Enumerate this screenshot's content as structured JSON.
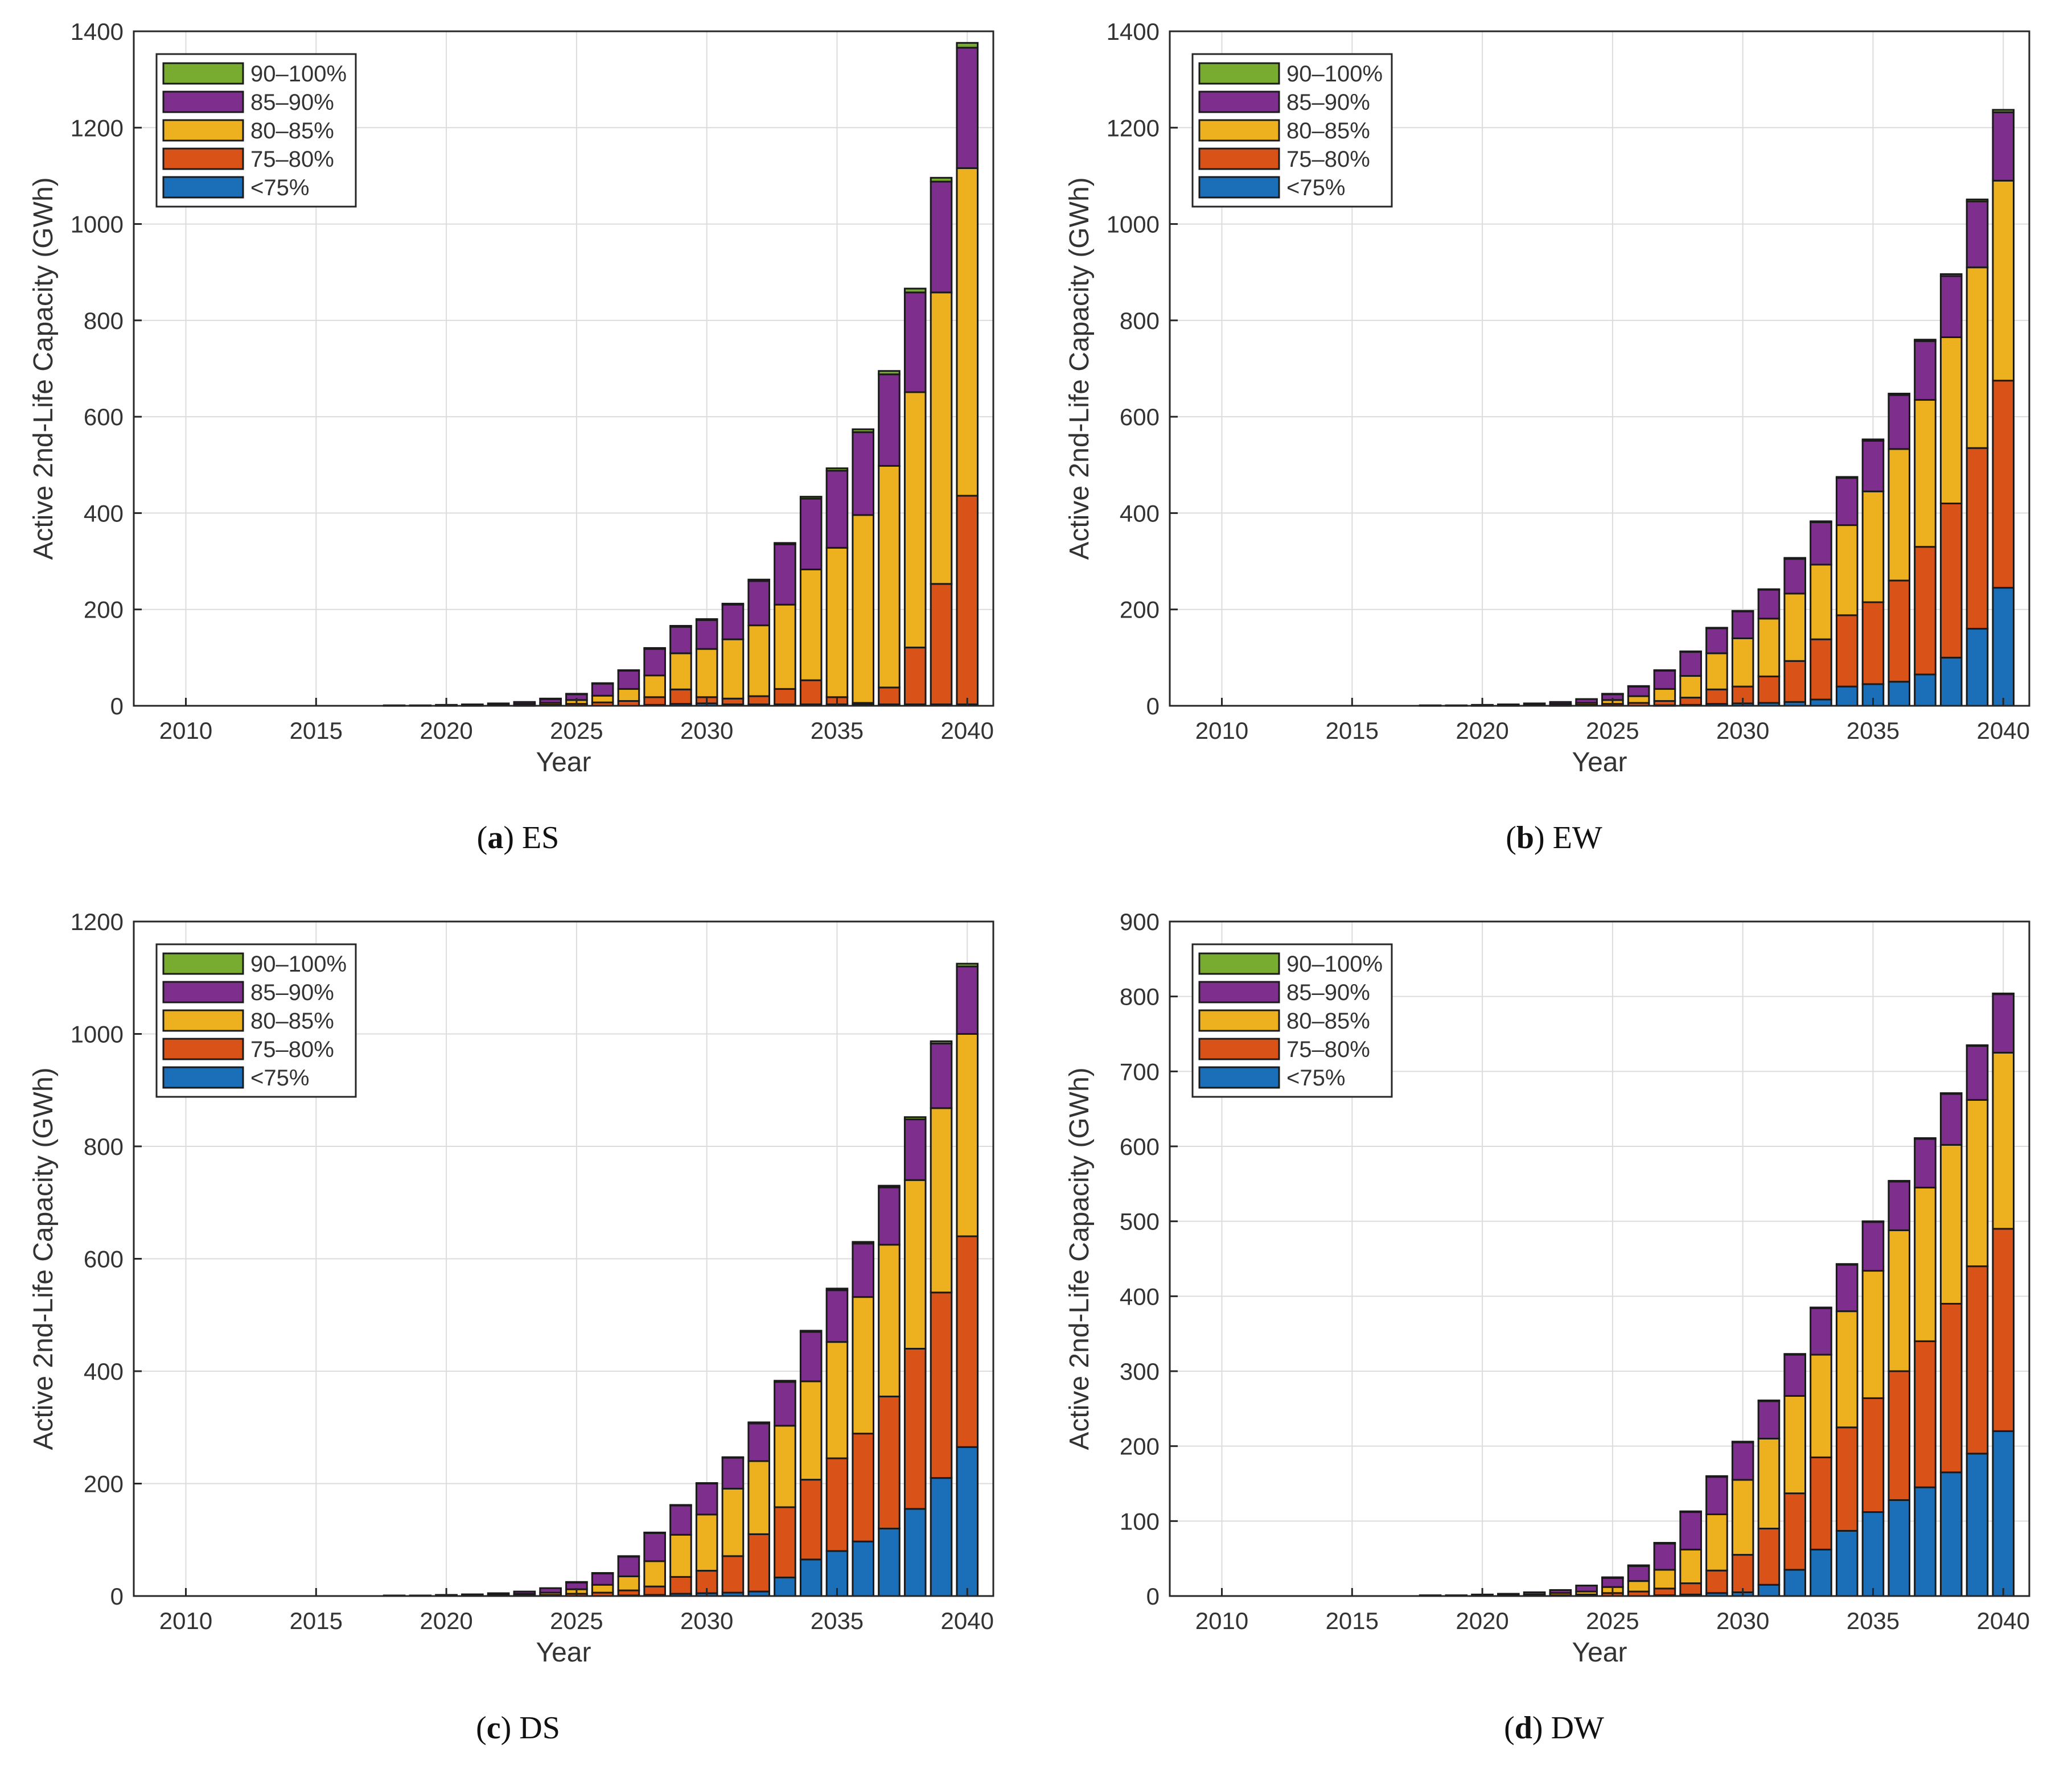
{
  "figure": {
    "series_names": [
      "<75%",
      "75–80%",
      "80–85%",
      "85–90%",
      "90–100%"
    ],
    "series_colors": [
      "#1a6fb8",
      "#d95319",
      "#edb120",
      "#7e2f8e",
      "#77ac30"
    ],
    "legend_order": [
      4,
      3,
      2,
      1,
      0
    ]
  },
  "chart_data": [
    {
      "type": "bar",
      "stacked": true,
      "caption_letter": "a",
      "caption_text": "ES",
      "xlabel": "Year",
      "ylabel": "Active 2nd-Life Capacity (GWh)",
      "xlim": [
        2008,
        2041
      ],
      "xticks": [
        2010,
        2015,
        2020,
        2025,
        2030,
        2035,
        2040
      ],
      "ylim": [
        0,
        1400
      ],
      "yticks": [
        0,
        200,
        400,
        600,
        800,
        1000,
        1200,
        1400
      ],
      "grid": true,
      "legend_position": "top-left",
      "categories": [
        2018,
        2019,
        2020,
        2021,
        2022,
        2023,
        2024,
        2025,
        2026,
        2027,
        2028,
        2029,
        2030,
        2031,
        2032,
        2033,
        2034,
        2035,
        2036,
        2037,
        2038,
        2039,
        2040
      ],
      "series": [
        {
          "name": "<75%",
          "values": [
            0,
            0,
            0,
            0,
            0,
            0,
            0,
            0,
            0,
            0,
            2,
            4,
            5,
            3,
            3,
            3,
            3,
            3,
            3,
            3,
            3,
            3,
            3
          ]
        },
        {
          "name": "75–80%",
          "values": [
            0,
            0,
            0,
            0,
            0,
            1,
            2,
            4,
            7,
            10,
            16,
            30,
            13,
            12,
            17,
            32,
            50,
            15,
            3,
            35,
            118,
            250,
            433
          ]
        },
        {
          "name": "80–85%",
          "values": [
            0,
            0,
            1,
            1,
            2,
            3,
            4,
            8,
            14,
            25,
            45,
            75,
            100,
            123,
            147,
            175,
            230,
            310,
            390,
            460,
            530,
            605,
            680
          ]
        },
        {
          "name": "85–90%",
          "values": [
            1,
            1,
            1,
            2,
            3,
            4,
            8,
            12,
            25,
            38,
            55,
            55,
            60,
            72,
            92,
            125,
            147,
            160,
            172,
            190,
            207,
            230,
            250
          ]
        },
        {
          "name": "90–100%",
          "values": [
            0,
            0,
            0,
            0,
            0,
            0,
            1,
            1,
            1,
            1,
            2,
            2,
            2,
            2,
            3,
            3,
            4,
            5,
            6,
            7,
            8,
            8,
            10
          ]
        }
      ]
    },
    {
      "type": "bar",
      "stacked": true,
      "caption_letter": "b",
      "caption_text": "EW",
      "xlabel": "Year",
      "ylabel": "Active 2nd-Life Capacity (GWh)",
      "xlim": [
        2008,
        2041
      ],
      "xticks": [
        2010,
        2015,
        2020,
        2025,
        2030,
        2035,
        2040
      ],
      "ylim": [
        0,
        1400
      ],
      "yticks": [
        0,
        200,
        400,
        600,
        800,
        1000,
        1200,
        1400
      ],
      "grid": true,
      "legend_position": "top-left",
      "categories": [
        2018,
        2019,
        2020,
        2021,
        2022,
        2023,
        2024,
        2025,
        2026,
        2027,
        2028,
        2029,
        2030,
        2031,
        2032,
        2033,
        2034,
        2035,
        2036,
        2037,
        2038,
        2039,
        2040
      ],
      "series": [
        {
          "name": "<75%",
          "values": [
            0,
            0,
            0,
            0,
            0,
            0,
            0,
            0,
            0,
            1,
            2,
            4,
            5,
            6,
            8,
            13,
            40,
            45,
            50,
            65,
            100,
            160,
            245
          ]
        },
        {
          "name": "75–80%",
          "values": [
            0,
            0,
            0,
            0,
            0,
            1,
            2,
            4,
            6,
            9,
            15,
            30,
            35,
            55,
            85,
            125,
            148,
            170,
            210,
            265,
            320,
            375,
            430
          ]
        },
        {
          "name": "80–85%",
          "values": [
            0,
            0,
            1,
            1,
            2,
            3,
            4,
            8,
            14,
            25,
            45,
            75,
            100,
            120,
            140,
            155,
            187,
            230,
            273,
            305,
            345,
            375,
            415
          ]
        },
        {
          "name": "85–90%",
          "values": [
            1,
            1,
            1,
            2,
            3,
            4,
            8,
            12,
            20,
            38,
            50,
            52,
            56,
            60,
            72,
            88,
            98,
            105,
            112,
            122,
            127,
            137,
            142
          ]
        },
        {
          "name": "90–100%",
          "values": [
            0,
            0,
            0,
            0,
            0,
            0,
            0,
            1,
            1,
            1,
            1,
            1,
            1,
            1,
            2,
            2,
            2,
            3,
            3,
            3,
            4,
            4,
            5
          ]
        }
      ]
    },
    {
      "type": "bar",
      "stacked": true,
      "caption_letter": "c",
      "caption_text": "DS",
      "xlabel": "Year",
      "ylabel": "Active 2nd-Life Capacity (GWh)",
      "xlim": [
        2008,
        2041
      ],
      "xticks": [
        2010,
        2015,
        2020,
        2025,
        2030,
        2035,
        2040
      ],
      "ylim": [
        0,
        1200
      ],
      "yticks": [
        0,
        200,
        400,
        600,
        800,
        1000,
        1200
      ],
      "grid": true,
      "legend_position": "top-left",
      "categories": [
        2018,
        2019,
        2020,
        2021,
        2022,
        2023,
        2024,
        2025,
        2026,
        2027,
        2028,
        2029,
        2030,
        2031,
        2032,
        2033,
        2034,
        2035,
        2036,
        2037,
        2038,
        2039,
        2040
      ],
      "series": [
        {
          "name": "<75%",
          "values": [
            0,
            0,
            0,
            0,
            0,
            0,
            0,
            0,
            0,
            1,
            2,
            4,
            5,
            6,
            8,
            33,
            65,
            80,
            97,
            120,
            155,
            210,
            265
          ]
        },
        {
          "name": "75–80%",
          "values": [
            0,
            0,
            0,
            0,
            0,
            1,
            2,
            4,
            6,
            9,
            15,
            30,
            40,
            65,
            102,
            125,
            142,
            165,
            192,
            235,
            285,
            330,
            375
          ]
        },
        {
          "name": "80–85%",
          "values": [
            0,
            0,
            1,
            1,
            2,
            3,
            4,
            8,
            14,
            25,
            45,
            75,
            100,
            120,
            130,
            145,
            175,
            207,
            243,
            270,
            300,
            328,
            360
          ]
        },
        {
          "name": "85–90%",
          "values": [
            1,
            1,
            1,
            2,
            3,
            4,
            8,
            12,
            20,
            35,
            50,
            52,
            55,
            55,
            67,
            78,
            88,
            92,
            95,
            102,
            108,
            115,
            120
          ]
        },
        {
          "name": "90–100%",
          "values": [
            0,
            0,
            0,
            0,
            0,
            0,
            0,
            1,
            1,
            1,
            1,
            1,
            1,
            1,
            2,
            2,
            2,
            3,
            3,
            3,
            4,
            4,
            5
          ]
        }
      ]
    },
    {
      "type": "bar",
      "stacked": true,
      "caption_letter": "d",
      "caption_text": "DW",
      "xlabel": "Year",
      "ylabel": "Active 2nd-Life Capacity (GWh)",
      "xlim": [
        2008,
        2041
      ],
      "xticks": [
        2010,
        2015,
        2020,
        2025,
        2030,
        2035,
        2040
      ],
      "ylim": [
        0,
        900
      ],
      "yticks": [
        0,
        100,
        200,
        300,
        400,
        500,
        600,
        700,
        800,
        900
      ],
      "grid": true,
      "legend_position": "top-left",
      "categories": [
        2018,
        2019,
        2020,
        2021,
        2022,
        2023,
        2024,
        2025,
        2026,
        2027,
        2028,
        2029,
        2030,
        2031,
        2032,
        2033,
        2034,
        2035,
        2036,
        2037,
        2038,
        2039,
        2040
      ],
      "series": [
        {
          "name": "<75%",
          "values": [
            0,
            0,
            0,
            0,
            0,
            0,
            0,
            0,
            0,
            1,
            2,
            4,
            5,
            15,
            35,
            62,
            87,
            112,
            128,
            145,
            165,
            190,
            220
          ]
        },
        {
          "name": "75–80%",
          "values": [
            0,
            0,
            0,
            0,
            0,
            1,
            2,
            4,
            6,
            9,
            15,
            30,
            50,
            75,
            102,
            123,
            138,
            152,
            172,
            195,
            225,
            250,
            270
          ]
        },
        {
          "name": "80–85%",
          "values": [
            0,
            0,
            1,
            1,
            2,
            3,
            4,
            8,
            14,
            25,
            45,
            75,
            100,
            120,
            130,
            137,
            155,
            170,
            188,
            205,
            212,
            222,
            235
          ]
        },
        {
          "name": "85–90%",
          "values": [
            1,
            1,
            1,
            2,
            3,
            4,
            8,
            12,
            20,
            35,
            50,
            50,
            50,
            50,
            55,
            62,
            62,
            65,
            65,
            65,
            68,
            72,
            78
          ]
        },
        {
          "name": "90–100%",
          "values": [
            0,
            0,
            0,
            0,
            0,
            0,
            0,
            1,
            1,
            1,
            1,
            1,
            1,
            1,
            1,
            1,
            1,
            1,
            1,
            1,
            1,
            1,
            1
          ]
        }
      ]
    }
  ]
}
